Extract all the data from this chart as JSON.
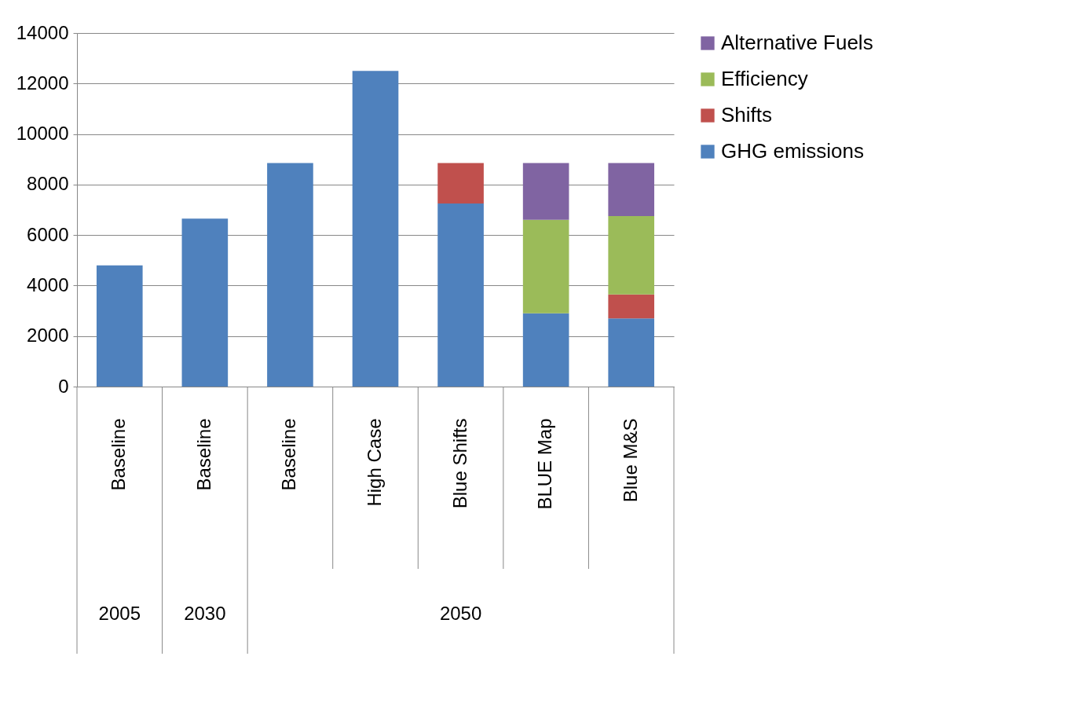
{
  "chart_data": {
    "type": "bar",
    "stacked": true,
    "categories": [
      "Baseline",
      "Baseline",
      "Baseline",
      "High Case",
      "Blue Shifts",
      "BLUE Map",
      "Blue M&S"
    ],
    "series": [
      {
        "name": "GHG emissions",
        "color": "#4f81bd",
        "values": [
          4800,
          6650,
          8850,
          12500,
          7250,
          2900,
          2700
        ]
      },
      {
        "name": "Shifts",
        "color": "#c0504d",
        "values": [
          null,
          null,
          null,
          null,
          1600,
          null,
          950
        ]
      },
      {
        "name": "Efficiency",
        "color": "#9bbb59",
        "values": [
          null,
          null,
          null,
          null,
          null,
          3700,
          3100
        ]
      },
      {
        "name": "Alternative Fuels",
        "color": "#8064a2",
        "values": [
          null,
          null,
          null,
          null,
          null,
          2250,
          2100
        ]
      }
    ],
    "ylim": [
      0,
      14000
    ],
    "yticks": [
      0,
      2000,
      4000,
      6000,
      8000,
      10000,
      12000,
      14000
    ],
    "grid": "y",
    "legend": "right",
    "annotations": [
      "2005",
      "2030",
      "2050"
    ]
  }
}
